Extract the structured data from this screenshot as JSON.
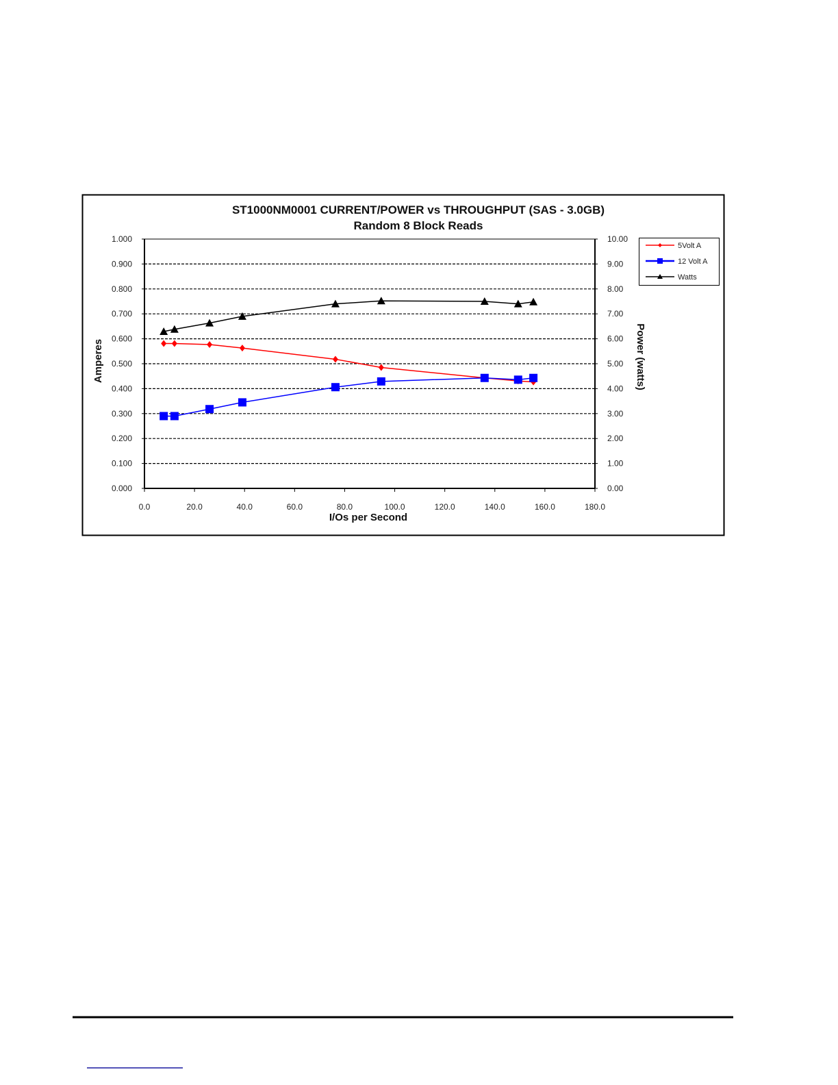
{
  "chart_data": {
    "type": "line",
    "title": "ST1000NM0001 CURRENT/POWER vs THROUGHPUT (SAS - 3.0GB)",
    "subtitle": "Random 8 Block Reads",
    "xlabel": "I/Os per Second",
    "ylabel": "Amperes",
    "y2label": "Power (watts)",
    "xlim": [
      0,
      180
    ],
    "ylim": [
      0,
      1
    ],
    "y2lim": [
      0,
      10
    ],
    "grid": true,
    "legend_position": "right",
    "xticks": [
      "0.0",
      "20.0",
      "40.0",
      "60.0",
      "80.0",
      "100.0",
      "120.0",
      "140.0",
      "160.0",
      "180.0"
    ],
    "yticks": [
      "0.000",
      "0.100",
      "0.200",
      "0.300",
      "0.400",
      "0.500",
      "0.600",
      "0.700",
      "0.800",
      "0.900",
      "1.000"
    ],
    "y2ticks": [
      "0.00",
      "1.00",
      "2.00",
      "3.00",
      "4.00",
      "5.00",
      "6.00",
      "7.00",
      "8.00",
      "9.00",
      "10.00"
    ],
    "x": [
      7.7,
      12.0,
      26.0,
      39.1,
      76.3,
      94.6,
      135.9,
      149.3,
      155.4
    ],
    "series": [
      {
        "name": "5Volt A",
        "axis": "left",
        "color": "#ff0000",
        "marker": "diamond",
        "values": [
          0.581,
          0.581,
          0.577,
          0.563,
          0.518,
          0.485,
          0.443,
          0.431,
          0.427
        ]
      },
      {
        "name": "12 Volt A",
        "axis": "left",
        "color": "#0000ff",
        "marker": "square",
        "values": [
          0.29,
          0.29,
          0.318,
          0.345,
          0.406,
          0.429,
          0.443,
          0.436,
          0.443
        ]
      },
      {
        "name": "Watts",
        "axis": "right",
        "color": "#000000",
        "marker": "triangle",
        "values": [
          6.29,
          6.38,
          6.63,
          6.9,
          7.4,
          7.52,
          7.5,
          7.4,
          7.48
        ]
      }
    ]
  }
}
